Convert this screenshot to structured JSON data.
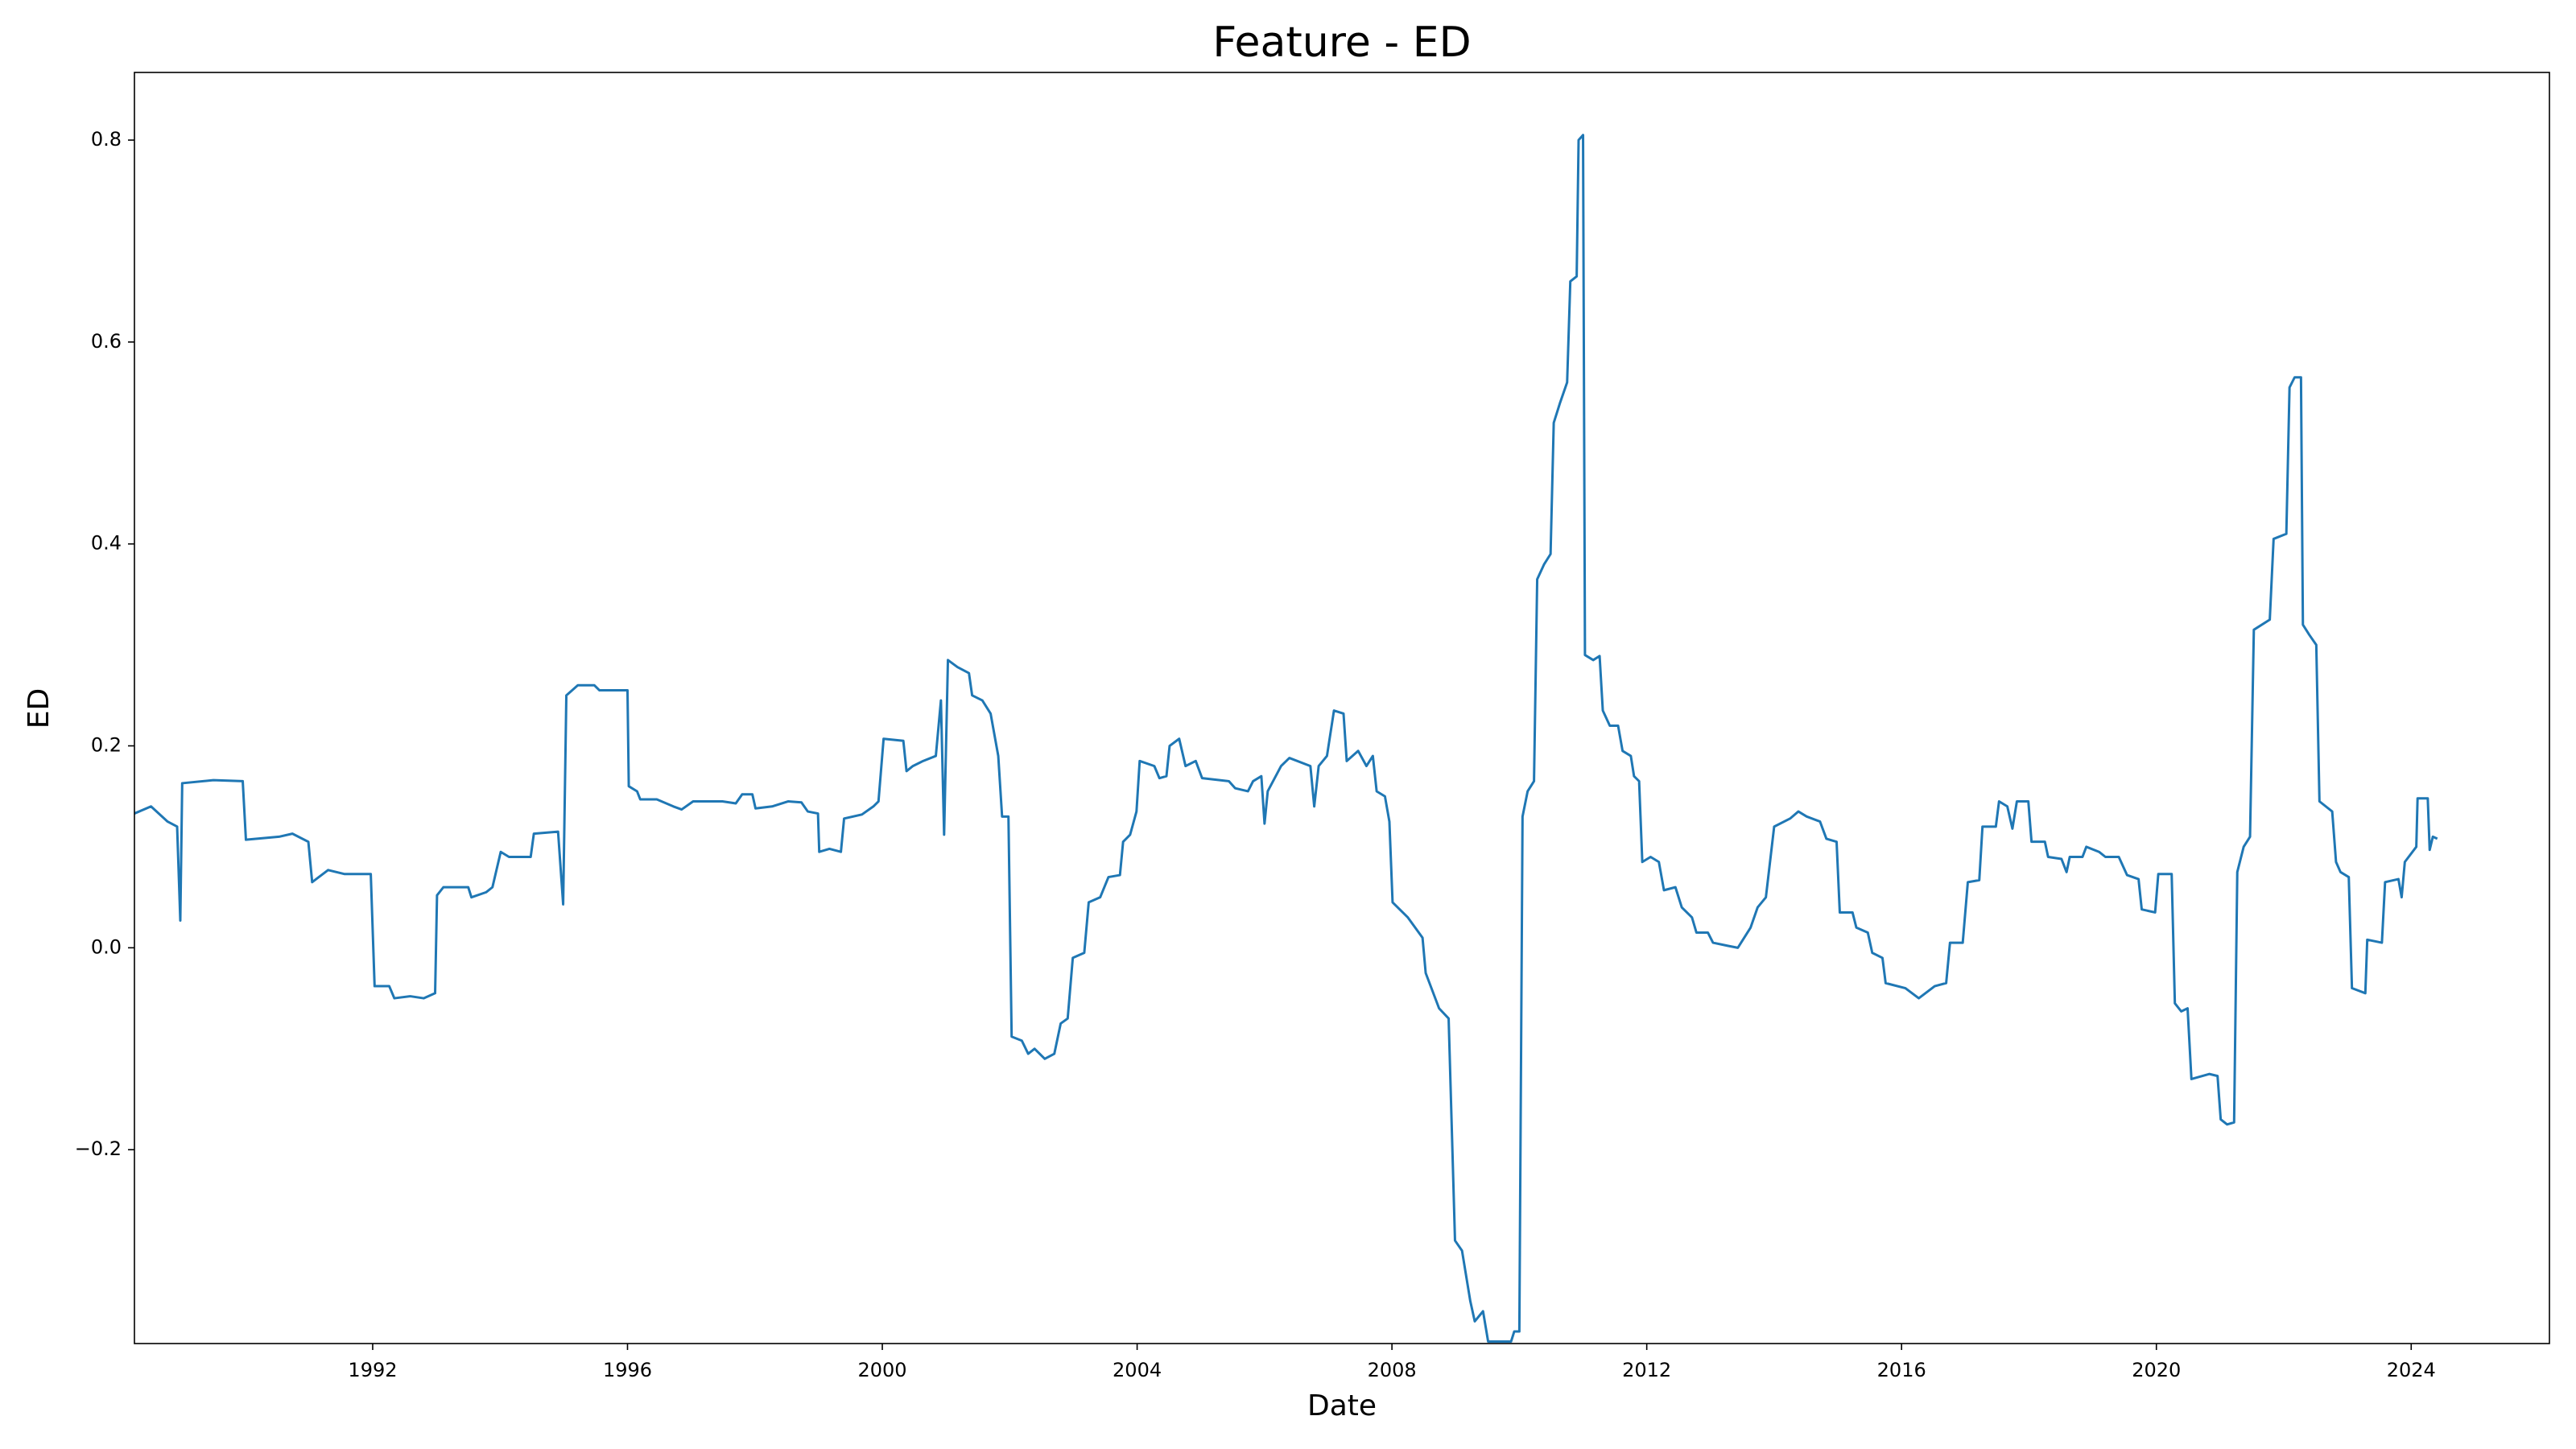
{
  "chart_data": {
    "type": "line",
    "title": "Feature - ED",
    "xlabel": "Date",
    "ylabel": "ED",
    "color": "#1f77b4",
    "xlim": [
      1988.26,
      2026.17
    ],
    "xticks": [
      1992,
      1996,
      2000,
      2004,
      2008,
      2012,
      2016,
      2020,
      2024
    ],
    "ylim": [
      -0.392,
      0.867
    ],
    "yticks": [
      {
        "value": -0.2,
        "label": "−0.2"
      },
      {
        "value": 0,
        "label": "0.0"
      },
      0.2,
      0.4,
      0.6,
      0.8
    ],
    "grid": false,
    "x": [
      1988.26,
      1988.52,
      1988.78,
      1988.93,
      1988.98,
      1989.01,
      1989.5,
      1989.96,
      1990.01,
      1990.53,
      1990.74,
      1990.99,
      1991.05,
      1991.3,
      1991.56,
      1991.97,
      1992.03,
      1992.26,
      1992.34,
      1992.59,
      1992.8,
      1992.98,
      1993.01,
      1993.11,
      1993.5,
      1993.55,
      1993.78,
      1993.88,
      1994.01,
      1994.14,
      1994.48,
      1994.53,
      1994.91,
      1994.99,
      1995.04,
      1995.22,
      1995.48,
      1995.56,
      1996.0,
      1996.02,
      1996.15,
      1996.2,
      1996.46,
      1996.72,
      1996.85,
      1997.03,
      1997.49,
      1997.7,
      1997.8,
      1997.96,
      1998.01,
      1998.27,
      1998.52,
      1998.73,
      1998.83,
      1998.99,
      1999.01,
      1999.17,
      1999.35,
      1999.4,
      1999.68,
      1999.86,
      1999.94,
      2000.02,
      2000.33,
      2000.38,
      2000.48,
      2000.64,
      2000.84,
      2000.92,
      2000.97,
      2001.03,
      2001.18,
      2001.36,
      2001.41,
      2001.57,
      2001.7,
      2001.82,
      2001.88,
      2001.98,
      2002.03,
      2002.19,
      2002.29,
      2002.39,
      2002.55,
      2002.7,
      2002.8,
      2002.91,
      2002.99,
      2003.17,
      2003.24,
      2003.42,
      2003.55,
      2003.73,
      2003.78,
      2003.89,
      2003.99,
      2004.04,
      2004.27,
      2004.35,
      2004.46,
      2004.51,
      2004.66,
      2004.76,
      2004.92,
      2005.02,
      2005.44,
      2005.54,
      2005.74,
      2005.82,
      2005.95,
      2006.0,
      2006.05,
      2006.26,
      2006.39,
      2006.72,
      2006.78,
      2006.85,
      2006.98,
      2007.09,
      2007.24,
      2007.29,
      2007.47,
      2007.6,
      2007.7,
      2007.76,
      2007.89,
      2007.96,
      2008.01,
      2008.25,
      2008.48,
      2008.53,
      2008.74,
      2008.89,
      2008.99,
      2009.1,
      2009.23,
      2009.3,
      2009.43,
      2009.51,
      2009.87,
      2009.92,
      2010.0,
      2010.05,
      2010.13,
      2010.23,
      2010.28,
      2010.39,
      2010.49,
      2010.54,
      2010.64,
      2010.75,
      2010.8,
      2010.9,
      2010.93,
      2011.0,
      2011.03,
      2011.16,
      2011.26,
      2011.31,
      2011.42,
      2011.55,
      2011.62,
      2011.75,
      2011.8,
      2011.88,
      2011.93,
      2012.06,
      2012.19,
      2012.27,
      2012.45,
      2012.55,
      2012.71,
      2012.78,
      2012.96,
      2013.04,
      2013.27,
      2013.43,
      2013.53,
      2013.63,
      2013.74,
      2013.87,
      2014.0,
      2014.25,
      2014.38,
      2014.51,
      2014.72,
      2014.82,
      2014.98,
      2015.03,
      2015.23,
      2015.29,
      2015.47,
      2015.54,
      2015.7,
      2015.75,
      2016.06,
      2016.27,
      2016.52,
      2016.7,
      2016.76,
      2016.96,
      2017.04,
      2017.22,
      2017.27,
      2017.48,
      2017.53,
      2017.66,
      2017.74,
      2017.81,
      2017.99,
      2018.04,
      2018.25,
      2018.3,
      2018.51,
      2018.59,
      2018.64,
      2018.84,
      2018.9,
      2019.1,
      2019.2,
      2019.41,
      2019.54,
      2019.72,
      2019.77,
      2019.98,
      2020.03,
      2020.24,
      2020.29,
      2020.39,
      2020.49,
      2020.55,
      2020.83,
      2020.96,
      2021.01,
      2021.11,
      2021.22,
      2021.27,
      2021.37,
      2021.47,
      2021.53,
      2021.78,
      2021.84,
      2022.04,
      2022.09,
      2022.17,
      2022.27,
      2022.3,
      2022.4,
      2022.51,
      2022.56,
      2022.76,
      2022.82,
      2022.89,
      2023.02,
      2023.07,
      2023.28,
      2023.31,
      2023.54,
      2023.59,
      2023.8,
      2023.85,
      2023.9,
      2024.08,
      2024.1,
      2024.26,
      2024.29,
      2024.34,
      2024.41
    ],
    "values": [
      0.133,
      0.14,
      0.125,
      0.12,
      0.027,
      0.163,
      0.166,
      0.165,
      0.107,
      0.11,
      0.113,
      0.105,
      0.065,
      0.077,
      0.073,
      0.073,
      -0.038,
      -0.038,
      -0.05,
      -0.048,
      -0.05,
      -0.045,
      0.052,
      0.06,
      0.06,
      0.05,
      0.055,
      0.06,
      0.095,
      0.09,
      0.09,
      0.113,
      0.115,
      0.043,
      0.25,
      0.26,
      0.26,
      0.255,
      0.255,
      0.16,
      0.155,
      0.147,
      0.147,
      0.14,
      0.137,
      0.145,
      0.145,
      0.143,
      0.152,
      0.152,
      0.138,
      0.14,
      0.145,
      0.144,
      0.135,
      0.133,
      0.095,
      0.098,
      0.095,
      0.128,
      0.132,
      0.14,
      0.145,
      0.207,
      0.205,
      0.175,
      0.18,
      0.185,
      0.19,
      0.245,
      0.112,
      0.285,
      0.278,
      0.272,
      0.25,
      0.245,
      0.232,
      0.19,
      0.13,
      0.13,
      -0.088,
      -0.092,
      -0.105,
      -0.1,
      -0.11,
      -0.105,
      -0.075,
      -0.07,
      -0.01,
      -0.005,
      0.045,
      0.05,
      0.07,
      0.072,
      0.105,
      0.112,
      0.135,
      0.185,
      0.18,
      0.168,
      0.17,
      0.2,
      0.207,
      0.18,
      0.185,
      0.168,
      0.165,
      0.158,
      0.155,
      0.165,
      0.17,
      0.123,
      0.155,
      0.18,
      0.188,
      0.18,
      0.14,
      0.18,
      0.19,
      0.235,
      0.232,
      0.185,
      0.195,
      0.18,
      0.19,
      0.155,
      0.15,
      0.125,
      0.045,
      0.03,
      0.01,
      -0.025,
      -0.06,
      -0.07,
      -0.29,
      -0.3,
      -0.35,
      -0.37,
      -0.36,
      -0.39,
      -0.39,
      -0.38,
      -0.38,
      0.13,
      0.155,
      0.165,
      0.365,
      0.38,
      0.39,
      0.52,
      0.54,
      0.56,
      0.66,
      0.665,
      0.8,
      0.805,
      0.29,
      0.285,
      0.289,
      0.235,
      0.22,
      0.22,
      0.195,
      0.19,
      0.17,
      0.165,
      0.085,
      0.09,
      0.085,
      0.057,
      0.06,
      0.04,
      0.03,
      0.015,
      0.015,
      0.005,
      0.002,
      0.0,
      0.01,
      0.02,
      0.04,
      0.05,
      0.12,
      0.128,
      0.135,
      0.13,
      0.125,
      0.108,
      0.105,
      0.035,
      0.035,
      0.02,
      0.015,
      -0.005,
      -0.01,
      -0.035,
      -0.04,
      -0.05,
      -0.038,
      -0.035,
      0.005,
      0.005,
      0.065,
      0.067,
      0.12,
      0.12,
      0.145,
      0.14,
      0.118,
      0.145,
      0.145,
      0.105,
      0.105,
      0.09,
      0.088,
      0.075,
      0.09,
      0.09,
      0.1,
      0.095,
      0.09,
      0.09,
      0.072,
      0.068,
      0.038,
      0.035,
      0.073,
      0.073,
      -0.055,
      -0.063,
      -0.06,
      -0.13,
      -0.125,
      -0.127,
      -0.17,
      -0.175,
      -0.173,
      0.075,
      0.1,
      0.11,
      0.315,
      0.325,
      0.405,
      0.41,
      0.555,
      0.565,
      0.565,
      0.32,
      0.31,
      0.3,
      0.145,
      0.135,
      0.085,
      0.075,
      0.07,
      -0.04,
      -0.045,
      0.008,
      0.005,
      0.065,
      0.068,
      0.05,
      0.085,
      0.1,
      0.148,
      0.148,
      0.097,
      0.11,
      0.108
    ]
  }
}
